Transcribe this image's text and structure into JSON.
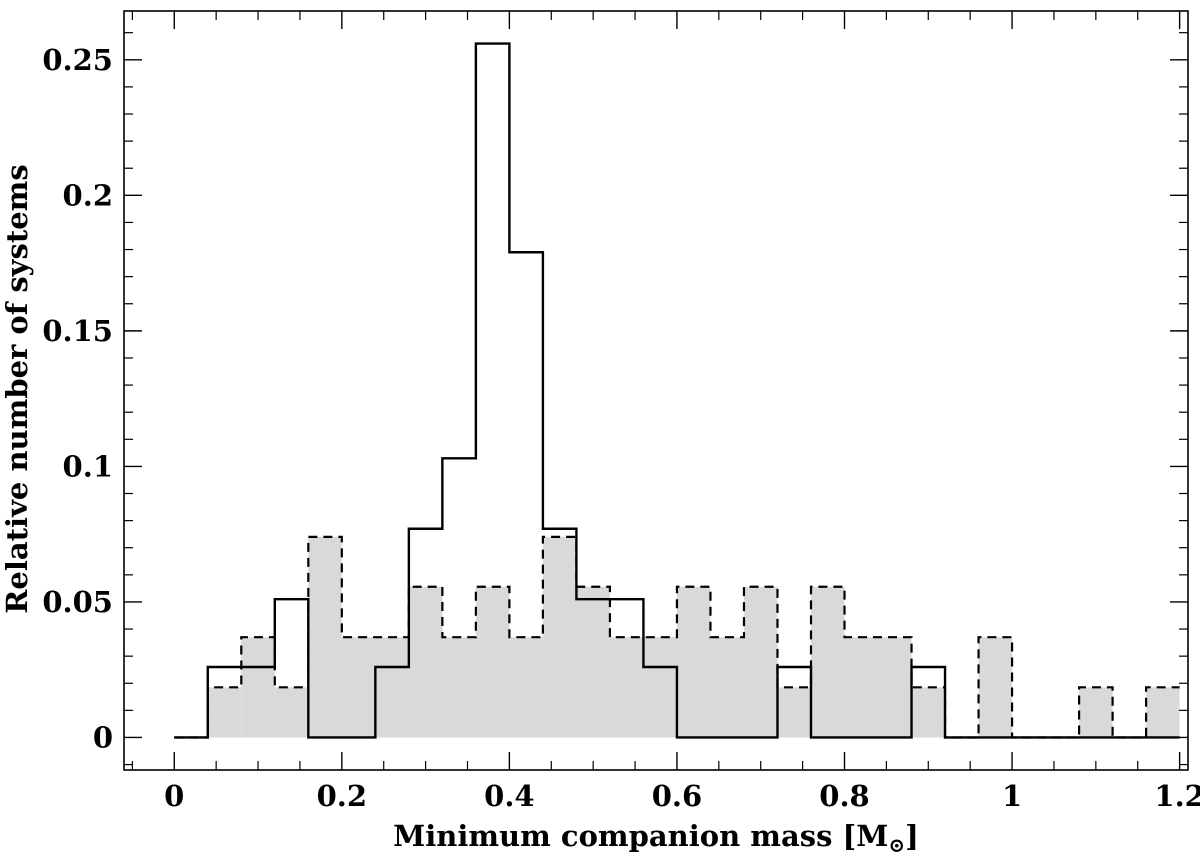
{
  "chart_data": {
    "type": "histogram",
    "xlabel_main": "Minimum companion mass [M",
    "xlabel_sub": "⊙",
    "xlabel_close": "]",
    "ylabel": "Relative number of systems",
    "xlim": [
      -0.06,
      1.21
    ],
    "ylim": [
      -0.012,
      0.268
    ],
    "bin_width": 0.04,
    "x_ticks": [
      0,
      0.2,
      0.4,
      0.6,
      0.8,
      1,
      1.2
    ],
    "x_tick_labels": [
      "0",
      "0.2",
      "0.4",
      "0.6",
      "0.8",
      "1",
      "1.2"
    ],
    "y_ticks": [
      0,
      0.05,
      0.1,
      0.15,
      0.2,
      0.25
    ],
    "y_tick_labels": [
      "0",
      "0.05",
      "0.1",
      "0.15",
      "0.2",
      "0.25"
    ],
    "series": [
      {
        "style": "solid-outline",
        "bin_edges": [
          0,
          0.04,
          0.08,
          0.12,
          0.16,
          0.2,
          0.24,
          0.28,
          0.32,
          0.36,
          0.4,
          0.44,
          0.48,
          0.52,
          0.56,
          0.6,
          0.64,
          0.68,
          0.72,
          0.76,
          0.8,
          0.84,
          0.88,
          0.92,
          0.96,
          1.0,
          1.04,
          1.08,
          1.12,
          1.16,
          1.2
        ],
        "values": [
          0,
          0.026,
          0.026,
          0.051,
          0,
          0,
          0.026,
          0.077,
          0.103,
          0.256,
          0.179,
          0.077,
          0.051,
          0.051,
          0.026,
          0,
          0,
          0,
          0.026,
          0,
          0,
          0,
          0.026,
          0,
          0,
          0,
          0,
          0,
          0,
          0
        ]
      },
      {
        "style": "dashed-filled",
        "color": "#d9d9d9",
        "bin_edges": [
          0,
          0.04,
          0.08,
          0.12,
          0.16,
          0.2,
          0.24,
          0.28,
          0.32,
          0.36,
          0.4,
          0.44,
          0.48,
          0.52,
          0.56,
          0.6,
          0.64,
          0.68,
          0.72,
          0.76,
          0.8,
          0.84,
          0.88,
          0.92,
          0.96,
          1.0,
          1.04,
          1.08,
          1.12,
          1.16,
          1.2
        ],
        "values": [
          0,
          0.0185,
          0.037,
          0.0185,
          0.074,
          0.037,
          0.037,
          0.0556,
          0.037,
          0.0556,
          0.037,
          0.074,
          0.0556,
          0.037,
          0.037,
          0.0556,
          0.037,
          0.0556,
          0.0185,
          0.0556,
          0.037,
          0.037,
          0.0185,
          0,
          0.037,
          0,
          0,
          0.0185,
          0,
          0.0185
        ]
      }
    ]
  }
}
